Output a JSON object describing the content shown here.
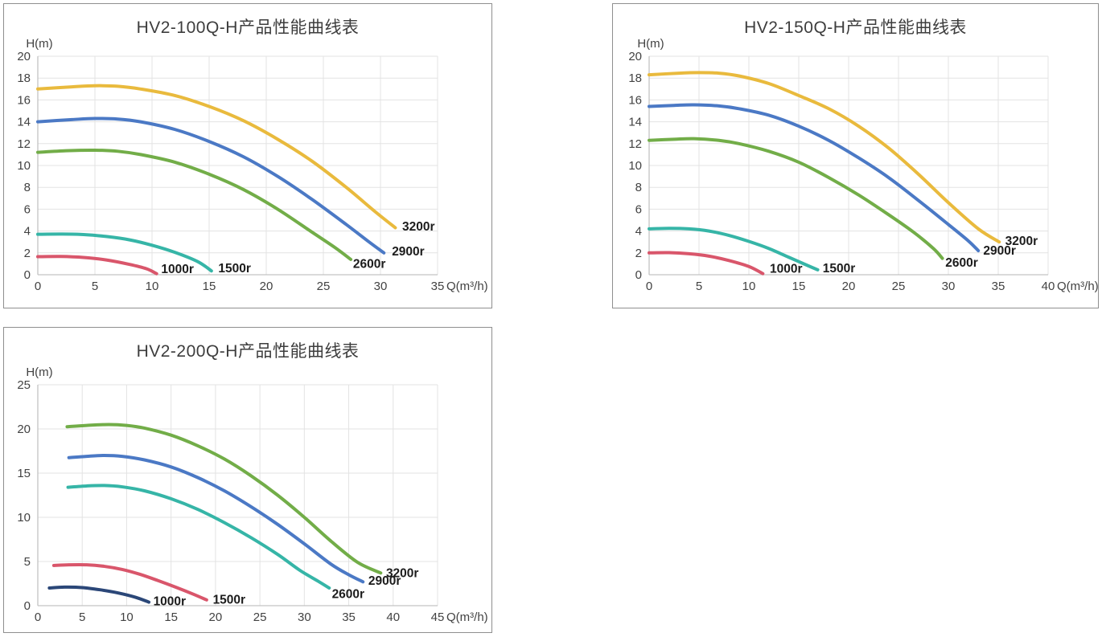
{
  "style": {
    "grid_color": "#e3e3e3",
    "axis_color": "#c3c3c3",
    "tick_color": "#424242",
    "title_color": "#3d3d3d",
    "curve_label_color": "#1c1c1c"
  },
  "chart_data": [
    {
      "type": "line",
      "title": "HV2-100Q-H产品性能曲线表",
      "ylabel": "H(m)",
      "x_suffix": "Q(m³/h)",
      "xlim": [
        0,
        35
      ],
      "ylim": [
        0,
        20
      ],
      "x_step": 5,
      "y_step": 2,
      "grid": true,
      "legend_position": "curve-ends",
      "series": [
        {
          "name": "3200r",
          "color": "#e9ba3d",
          "label_pos": [
            31.9,
            4.4
          ],
          "points": [
            [
              0,
              17.0
            ],
            [
              3,
              17.2
            ],
            [
              5,
              17.3
            ],
            [
              7,
              17.25
            ],
            [
              9,
              17.0
            ],
            [
              12,
              16.4
            ],
            [
              15,
              15.4
            ],
            [
              18,
              14.1
            ],
            [
              21,
              12.4
            ],
            [
              24,
              10.4
            ],
            [
              27,
              8.0
            ],
            [
              29.5,
              5.8
            ],
            [
              31.3,
              4.3
            ]
          ]
        },
        {
          "name": "2900r",
          "color": "#4b79c5",
          "label_pos": [
            31.0,
            2.15
          ],
          "points": [
            [
              0,
              14.0
            ],
            [
              3,
              14.2
            ],
            [
              5,
              14.3
            ],
            [
              7,
              14.25
            ],
            [
              9,
              14.0
            ],
            [
              12,
              13.3
            ],
            [
              15,
              12.2
            ],
            [
              18,
              10.8
            ],
            [
              21,
              9.0
            ],
            [
              24,
              6.9
            ],
            [
              27,
              4.6
            ],
            [
              29,
              3.0
            ],
            [
              30.3,
              2.0
            ]
          ]
        },
        {
          "name": "2600r",
          "color": "#72ad48",
          "label_pos": [
            27.6,
            1.0
          ],
          "points": [
            [
              0,
              11.2
            ],
            [
              2.5,
              11.35
            ],
            [
              5,
              11.4
            ],
            [
              7,
              11.3
            ],
            [
              9,
              11.0
            ],
            [
              12,
              10.3
            ],
            [
              15,
              9.2
            ],
            [
              18,
              7.8
            ],
            [
              21,
              6.0
            ],
            [
              24,
              3.9
            ],
            [
              26,
              2.5
            ],
            [
              27.4,
              1.4
            ]
          ]
        },
        {
          "name": "1500r",
          "color": "#36b5a7",
          "label_pos": [
            15.8,
            0.6
          ],
          "points": [
            [
              0,
              3.7
            ],
            [
              2,
              3.72
            ],
            [
              4,
              3.68
            ],
            [
              6,
              3.5
            ],
            [
              8,
              3.2
            ],
            [
              10,
              2.7
            ],
            [
              12,
              2.05
            ],
            [
              14,
              1.2
            ],
            [
              15.2,
              0.35
            ]
          ]
        },
        {
          "name": "1000r",
          "color": "#d9566b",
          "label_pos": [
            10.8,
            0.5
          ],
          "points": [
            [
              0,
              1.65
            ],
            [
              2,
              1.67
            ],
            [
              4,
              1.58
            ],
            [
              6,
              1.35
            ],
            [
              8,
              0.95
            ],
            [
              9.5,
              0.55
            ],
            [
              10.4,
              0.1
            ]
          ]
        }
      ]
    },
    {
      "type": "line",
      "title": "HV2-150Q-H产品性能曲线表",
      "ylabel": "H(m)",
      "x_suffix": "Q(m³/h)",
      "xlim": [
        0,
        40
      ],
      "ylim": [
        0,
        20
      ],
      "x_step": 5,
      "y_step": 2,
      "grid": true,
      "legend_position": "curve-ends",
      "series": [
        {
          "name": "3200r",
          "color": "#e9ba3d",
          "label_pos": [
            35.7,
            3.1
          ],
          "points": [
            [
              0,
              18.3
            ],
            [
              3,
              18.45
            ],
            [
              5,
              18.5
            ],
            [
              7,
              18.45
            ],
            [
              9,
              18.2
            ],
            [
              12,
              17.5
            ],
            [
              15,
              16.4
            ],
            [
              18,
              15.2
            ],
            [
              21,
              13.6
            ],
            [
              24,
              11.6
            ],
            [
              27,
              9.2
            ],
            [
              30,
              6.6
            ],
            [
              33,
              4.2
            ],
            [
              35.1,
              3.0
            ]
          ]
        },
        {
          "name": "2900r",
          "color": "#4b79c5",
          "label_pos": [
            33.5,
            2.2
          ],
          "points": [
            [
              0,
              15.4
            ],
            [
              2.5,
              15.5
            ],
            [
              4.5,
              15.55
            ],
            [
              7,
              15.45
            ],
            [
              9,
              15.2
            ],
            [
              12,
              14.6
            ],
            [
              15,
              13.6
            ],
            [
              18,
              12.3
            ],
            [
              21,
              10.7
            ],
            [
              24,
              8.9
            ],
            [
              27,
              6.8
            ],
            [
              30,
              4.6
            ],
            [
              32,
              3.1
            ],
            [
              33,
              2.2
            ]
          ]
        },
        {
          "name": "2600r",
          "color": "#72ad48",
          "label_pos": [
            29.7,
            1.1
          ],
          "points": [
            [
              0,
              12.3
            ],
            [
              2.5,
              12.4
            ],
            [
              4.5,
              12.45
            ],
            [
              7,
              12.3
            ],
            [
              9,
              12.0
            ],
            [
              12,
              11.3
            ],
            [
              15,
              10.3
            ],
            [
              18,
              8.9
            ],
            [
              21,
              7.3
            ],
            [
              24,
              5.5
            ],
            [
              26.5,
              3.9
            ],
            [
              28.5,
              2.4
            ],
            [
              29.4,
              1.5
            ]
          ]
        },
        {
          "name": "1500r",
          "color": "#36b5a7",
          "label_pos": [
            17.4,
            0.6
          ],
          "points": [
            [
              0,
              4.2
            ],
            [
              2,
              4.25
            ],
            [
              4,
              4.2
            ],
            [
              6,
              4.0
            ],
            [
              8,
              3.6
            ],
            [
              10,
              3.05
            ],
            [
              12,
              2.4
            ],
            [
              14,
              1.6
            ],
            [
              16,
              0.8
            ],
            [
              16.9,
              0.45
            ]
          ]
        },
        {
          "name": "1000r",
          "color": "#d9566b",
          "label_pos": [
            12.1,
            0.55
          ],
          "points": [
            [
              0,
              2.0
            ],
            [
              2,
              2.02
            ],
            [
              4,
              1.92
            ],
            [
              6,
              1.7
            ],
            [
              8,
              1.3
            ],
            [
              10,
              0.75
            ],
            [
              11.4,
              0.1
            ]
          ]
        }
      ]
    },
    {
      "type": "line",
      "title": "HV2-200Q-H产品性能曲线表",
      "ylabel": "H(m)",
      "x_suffix": "Q(m³/h)",
      "xlim": [
        0,
        45
      ],
      "ylim": [
        0,
        25
      ],
      "x_step": 5,
      "y_step": 5,
      "grid": true,
      "legend_position": "curve-ends",
      "series": [
        {
          "name": "3200r",
          "color": "#72ad48",
          "label_pos": [
            39.2,
            3.7
          ],
          "points": [
            [
              3.3,
              20.25
            ],
            [
              5.5,
              20.4
            ],
            [
              8,
              20.5
            ],
            [
              10,
              20.4
            ],
            [
              12,
              20.1
            ],
            [
              15,
              19.3
            ],
            [
              18,
              18.1
            ],
            [
              21,
              16.6
            ],
            [
              24,
              14.7
            ],
            [
              27,
              12.5
            ],
            [
              30,
              10.0
            ],
            [
              33,
              7.3
            ],
            [
              36,
              4.9
            ],
            [
              38.6,
              3.7
            ]
          ]
        },
        {
          "name": "2900r",
          "color": "#4b79c5",
          "label_pos": [
            37.2,
            2.8
          ],
          "points": [
            [
              3.5,
              16.75
            ],
            [
              5.5,
              16.9
            ],
            [
              7.5,
              17.0
            ],
            [
              9.5,
              16.9
            ],
            [
              12,
              16.5
            ],
            [
              15,
              15.7
            ],
            [
              18,
              14.5
            ],
            [
              21,
              13.0
            ],
            [
              24,
              11.2
            ],
            [
              27,
              9.2
            ],
            [
              30,
              7.0
            ],
            [
              33,
              4.7
            ],
            [
              35,
              3.5
            ],
            [
              36.6,
              2.7
            ]
          ]
        },
        {
          "name": "2600r",
          "color": "#36b5a7",
          "label_pos": [
            33.1,
            1.3
          ],
          "points": [
            [
              3.4,
              13.4
            ],
            [
              5.5,
              13.55
            ],
            [
              7.5,
              13.6
            ],
            [
              9.5,
              13.45
            ],
            [
              12,
              13.0
            ],
            [
              15,
              12.1
            ],
            [
              18,
              10.9
            ],
            [
              21,
              9.4
            ],
            [
              24,
              7.7
            ],
            [
              27,
              5.8
            ],
            [
              29.5,
              4.0
            ],
            [
              31.5,
              2.8
            ],
            [
              32.8,
              2.0
            ]
          ]
        },
        {
          "name": "1500r",
          "color": "#d9566b",
          "label_pos": [
            19.7,
            0.7
          ],
          "points": [
            [
              1.8,
              4.55
            ],
            [
              3.5,
              4.62
            ],
            [
              5.5,
              4.62
            ],
            [
              7.5,
              4.45
            ],
            [
              9.5,
              4.1
            ],
            [
              11.5,
              3.55
            ],
            [
              13.5,
              2.85
            ],
            [
              15.5,
              2.1
            ],
            [
              17.5,
              1.3
            ],
            [
              19.0,
              0.65
            ]
          ]
        },
        {
          "name": "1000r",
          "color": "#2b4778",
          "label_pos": [
            13.0,
            0.5
          ],
          "points": [
            [
              1.3,
              2.0
            ],
            [
              3,
              2.1
            ],
            [
              5,
              2.05
            ],
            [
              7,
              1.8
            ],
            [
              9,
              1.45
            ],
            [
              11,
              0.95
            ],
            [
              12.5,
              0.4
            ]
          ]
        }
      ]
    }
  ]
}
